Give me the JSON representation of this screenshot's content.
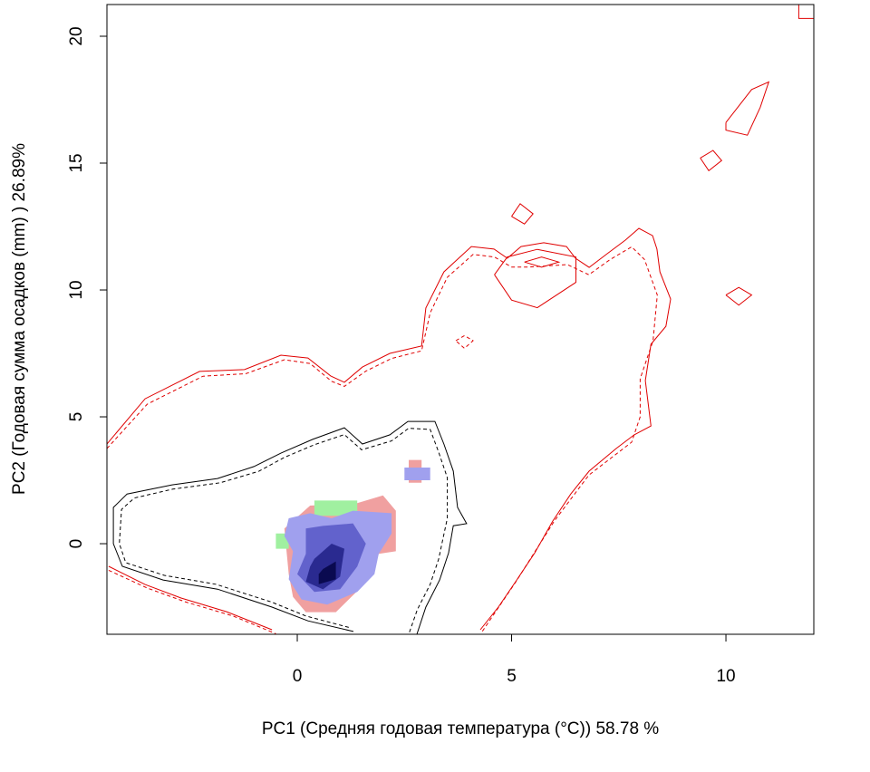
{
  "chart_data": {
    "type": "contour",
    "xlabel": "PC1 (Средняя годовая температура (°C)) 58.78 %",
    "ylabel": "PC2 (Годовая сумма осадков  (mm) ) 26.89%",
    "xlim": [
      -4.44,
      12.05
    ],
    "ylim": [
      -3.57,
      21.25
    ],
    "xticks": [
      0,
      5,
      10
    ],
    "yticks": [
      0,
      5,
      10,
      15,
      20
    ],
    "areas": [
      {
        "color": "#f0a0a0",
        "x": [
          -0.1,
          -0.2,
          -0.3,
          0.3,
          1.4,
          2.0,
          2.3,
          2.3,
          1.9,
          1.5,
          0.9,
          0.2
        ],
        "y": [
          -2.1,
          -1.2,
          0.6,
          1.5,
          1.6,
          1.9,
          1.3,
          -0.3,
          -0.4,
          -1.7,
          -2.7,
          -2.7
        ]
      },
      {
        "color": "#f0a0a0",
        "x": [
          2.6,
          2.6,
          2.9,
          2.9
        ],
        "y": [
          2.4,
          3.3,
          3.3,
          2.4
        ]
      },
      {
        "color": "#a0f0a0",
        "x": [
          0.4,
          0.4,
          1.4,
          1.4
        ],
        "y": [
          1.1,
          1.7,
          1.7,
          1.1
        ]
      },
      {
        "color": "#a0f0a0",
        "x": [
          -0.5,
          -0.5,
          -0.2,
          -0.2
        ],
        "y": [
          -0.2,
          0.4,
          0.4,
          -0.2
        ]
      },
      {
        "color": "#a0a0ee",
        "x": [
          -0.3,
          -0.2,
          0.3,
          0.8,
          1.3,
          2.2,
          2.2,
          1.9,
          1.8,
          1.4,
          0.7,
          0.1,
          -0.2,
          -0.1
        ],
        "y": [
          0.3,
          1.0,
          1.2,
          1.0,
          1.3,
          1.2,
          0.4,
          -0.4,
          -1.2,
          -1.9,
          -2.4,
          -2.2,
          -1.4,
          -0.3
        ]
      },
      {
        "color": "#a0a0ee",
        "x": [
          2.5,
          2.5,
          3.1,
          3.1
        ],
        "y": [
          2.5,
          3.0,
          3.0,
          2.5
        ]
      },
      {
        "color": "#6262cc",
        "x": [
          0.2,
          0.6,
          1.3,
          1.6,
          1.4,
          1.0,
          0.4,
          0.0,
          0.2
        ],
        "y": [
          0.6,
          0.7,
          0.8,
          0.0,
          -0.9,
          -1.8,
          -1.9,
          -1.2,
          -0.4
        ]
      },
      {
        "color": "#2a2a90",
        "x": [
          0.4,
          0.8,
          1.1,
          1.0,
          0.6,
          0.2,
          0.3
        ],
        "y": [
          -0.6,
          0.0,
          -0.2,
          -1.3,
          -1.8,
          -1.5,
          -0.9
        ]
      },
      {
        "color": "#0a0a50",
        "x": [
          0.6,
          0.9,
          0.9,
          0.5,
          0.5
        ],
        "y": [
          -1.0,
          -0.7,
          -1.4,
          -1.6,
          -1.2
        ]
      }
    ],
    "contours": [
      {
        "color": "#e00000",
        "dashed": false,
        "x": [
          -4.44,
          -3.55,
          -2.28,
          -1.23,
          -0.38,
          0.25,
          0.78,
          1.1,
          1.52,
          2.16,
          2.9,
          3.0,
          3.42,
          4.06,
          4.59,
          4.9,
          5.22,
          5.75,
          6.28,
          6.49,
          6.81,
          7.23,
          7.65,
          7.97,
          8.29,
          8.39,
          8.46,
          8.71,
          8.6,
          8.25,
          8.12,
          8.25,
          7.86,
          7.44,
          6.81,
          6.38,
          5.96,
          5.54,
          5.12,
          4.69,
          4.27
        ],
        "y": [
          3.93,
          5.71,
          6.79,
          6.86,
          7.43,
          7.32,
          6.61,
          6.36,
          6.96,
          7.5,
          7.79,
          9.29,
          10.71,
          11.71,
          11.61,
          11.25,
          11.71,
          11.86,
          11.71,
          11.25,
          10.89,
          11.43,
          11.96,
          12.43,
          12.14,
          11.61,
          10.71,
          9.64,
          8.57,
          7.86,
          6.43,
          4.64,
          4.29,
          3.75,
          2.86,
          1.96,
          0.89,
          -0.36,
          -1.43,
          -2.5,
          -3.39
        ]
      },
      {
        "color": "#e00000",
        "dashed": true,
        "x": [
          -4.44,
          -3.5,
          -2.2,
          -1.2,
          -0.3,
          0.3,
          0.8,
          1.1,
          1.6,
          2.2,
          2.9,
          3.1,
          3.5,
          4.1,
          4.6,
          5.0,
          5.4,
          6.3,
          6.8,
          7.3,
          7.8,
          8.1,
          8.4,
          8.3,
          8.0,
          8.0,
          7.8,
          6.8,
          6.0,
          5.1,
          4.3
        ],
        "y": [
          3.75,
          5.5,
          6.6,
          6.7,
          7.25,
          7.1,
          6.4,
          6.2,
          6.8,
          7.3,
          7.6,
          9.1,
          10.5,
          11.4,
          11.3,
          10.9,
          10.9,
          11.0,
          10.6,
          11.2,
          11.7,
          11.2,
          9.8,
          8.0,
          6.5,
          5.0,
          4.0,
          2.7,
          0.9,
          -1.5,
          -3.5
        ]
      },
      {
        "color": "#e00000",
        "dashed": false,
        "x": [
          -4.4,
          -3.55,
          -2.71,
          -1.65,
          -0.59
        ],
        "y": [
          -0.89,
          -1.61,
          -2.14,
          -2.68,
          -3.39
        ]
      },
      {
        "color": "#e00000",
        "dashed": true,
        "x": [
          -4.4,
          -3.5,
          -2.6,
          -1.5,
          -0.5
        ],
        "y": [
          -1.05,
          -1.75,
          -2.3,
          -2.85,
          -3.55
        ]
      },
      {
        "color": "#e00000",
        "dashed": false,
        "x": [
          4.6,
          4.9,
          5.6,
          6.5,
          6.5,
          5.6,
          5.0,
          4.6
        ],
        "y": [
          10.6,
          11.3,
          11.6,
          11.3,
          10.3,
          9.3,
          9.6,
          10.6
        ]
      },
      {
        "color": "#e00000",
        "dashed": false,
        "x": [
          5.3,
          5.7,
          6.1,
          5.7,
          5.3
        ],
        "y": [
          11.1,
          11.3,
          11.1,
          10.9,
          11.1
        ]
      },
      {
        "color": "#e00000",
        "dashed": false,
        "x": [
          5.0,
          5.2,
          5.5,
          5.3,
          5.0
        ],
        "y": [
          12.9,
          13.4,
          13.0,
          12.6,
          12.9
        ]
      },
      {
        "color": "#e00000",
        "dashed": false,
        "x": [
          9.4,
          9.7,
          9.9,
          9.6,
          9.4
        ],
        "y": [
          15.2,
          15.5,
          15.1,
          14.7,
          15.2
        ]
      },
      {
        "color": "#e00000",
        "dashed": false,
        "x": [
          10.0,
          10.3,
          10.6,
          10.3,
          10.0
        ],
        "y": [
          9.8,
          10.1,
          9.8,
          9.4,
          9.8
        ]
      },
      {
        "color": "#e00000",
        "dashed": false,
        "x": [
          10.0,
          10.6,
          11.0,
          10.8,
          10.5,
          10.0,
          10.0
        ],
        "y": [
          16.6,
          17.9,
          18.2,
          17.2,
          16.1,
          16.3,
          16.6
        ]
      },
      {
        "color": "#e00000",
        "dashed": false,
        "x": [
          11.7,
          11.7,
          12.05
        ],
        "y": [
          21.25,
          20.7,
          20.7
        ]
      },
      {
        "color": "#e00000",
        "dashed": true,
        "x": [
          3.7,
          3.9,
          4.1,
          3.9,
          3.7
        ],
        "y": [
          8.0,
          8.2,
          8.0,
          7.7,
          8.0
        ]
      },
      {
        "color": "#000000",
        "dashed": false,
        "x": [
          1.31,
          0.25,
          -0.59,
          -1.86,
          -3.13,
          -4.08,
          -4.29,
          -4.29,
          -3.97,
          -2.92,
          -1.86,
          -1.01,
          -0.38,
          0.36,
          1.1,
          1.52,
          2.16,
          2.58,
          3.21,
          3.42,
          3.64,
          3.74,
          3.95,
          3.64,
          3.53,
          3.32,
          3.0,
          2.79
        ],
        "y": [
          -3.46,
          -3.04,
          -2.5,
          -1.79,
          -1.43,
          -0.89,
          0.0,
          1.43,
          1.96,
          2.32,
          2.57,
          3.04,
          3.57,
          4.11,
          4.57,
          3.93,
          4.29,
          4.82,
          4.82,
          3.93,
          2.86,
          1.43,
          0.79,
          0.71,
          -0.36,
          -1.43,
          -2.5,
          -3.57
        ]
      },
      {
        "color": "#000000",
        "dashed": true,
        "x": [
          1.2,
          0.2,
          -0.6,
          -1.9,
          -3.1,
          -4.0,
          -4.15,
          -4.1,
          -3.8,
          -2.9,
          -1.8,
          -0.9,
          -0.3,
          0.4,
          1.1,
          1.5,
          2.2,
          2.6,
          3.1,
          3.3,
          3.5,
          3.5,
          3.4,
          3.3,
          3.1,
          2.8,
          2.6
        ],
        "y": [
          -3.3,
          -2.85,
          -2.3,
          -1.6,
          -1.25,
          -0.75,
          0.0,
          1.35,
          1.8,
          2.15,
          2.4,
          2.85,
          3.4,
          3.9,
          4.3,
          3.7,
          4.05,
          4.55,
          4.5,
          3.6,
          2.6,
          1.0,
          0.2,
          -0.6,
          -1.6,
          -2.6,
          -3.57
        ]
      }
    ]
  }
}
